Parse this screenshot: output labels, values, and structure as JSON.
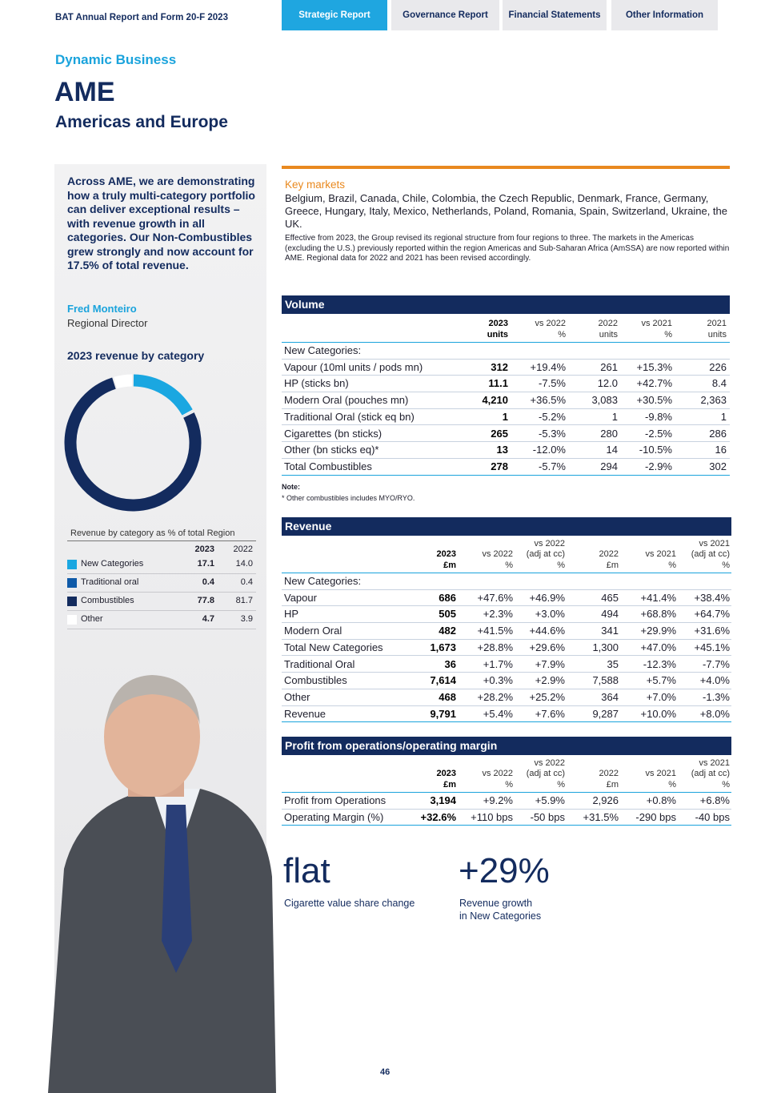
{
  "header": {
    "title": "BAT Annual Report and Form 20-F 2023",
    "tabs": [
      "Strategic Report",
      "Governance Report",
      "Financial Statements",
      "Other Information"
    ]
  },
  "section": "Dynamic Business",
  "title": "AME",
  "subtitle": "Americas and Europe",
  "quote": "Across AME, we are demonstrating how a truly multi-category portfolio can deliver exceptional results – with revenue growth in all categories. Our Non-Combustibles grew strongly and now account for 17.5% of total revenue.",
  "person": {
    "name": "Fred  Monteiro",
    "role": "Regional Director"
  },
  "revenue_chart": {
    "title": "2023 revenue by category",
    "table_title": "Revenue by category as % of total Region",
    "columns": [
      "2023",
      "2022"
    ],
    "rows": [
      {
        "label": "New Categories",
        "color": "#1aa7e1",
        "values": [
          "17.1",
          "14.0"
        ]
      },
      {
        "label": "Traditional oral",
        "color": "#0f5aa8",
        "values": [
          "0.4",
          "0.4"
        ]
      },
      {
        "label": "Combustibles",
        "color": "#132b5e",
        "values": [
          "77.8",
          "81.7"
        ]
      },
      {
        "label": "Other",
        "color": "#ffffff",
        "values": [
          "4.7",
          "3.9"
        ]
      }
    ]
  },
  "key_markets": {
    "title": "Key markets",
    "text": "Belgium, Brazil, Canada, Chile, Colombia, the Czech Republic, Denmark, France, Germany, Greece, Hungary, Italy, Mexico, Netherlands, Poland, Romania, Spain, Switzerland, Ukraine, the UK.",
    "note": "Effective from 2023, the Group revised its regional structure from four regions to three. The markets in the Americas (excluding the U.S.) previously reported within the region Americas and Sub-Saharan Africa (AmSSA) are now reported within AME. Regional data for 2022 and 2021 has been revised accordingly."
  },
  "tables": [
    {
      "title": "Volume",
      "columns": [
        [
          "2023",
          "units"
        ],
        [
          "vs 2022",
          "%"
        ],
        [
          "2022",
          "units"
        ],
        [
          "vs 2021",
          "%"
        ],
        [
          "2021",
          "units"
        ]
      ],
      "rows": [
        [
          "New Categories:"
        ],
        [
          "Vapour (10ml units / pods mn)",
          "312",
          "+19.4%",
          "261",
          "+15.3%",
          "226"
        ],
        [
          "HP (sticks bn)",
          "11.1",
          "-7.5%",
          "12.0",
          "+42.7%",
          "8.4"
        ],
        [
          "Modern Oral (pouches mn)",
          "4,210",
          "+36.5%",
          "3,083",
          "+30.5%",
          "2,363"
        ],
        [
          "Traditional Oral (stick eq bn)",
          "1",
          "-5.2%",
          "1",
          "-9.8%",
          "1"
        ],
        [
          "Cigarettes (bn sticks)",
          "265",
          "-5.3%",
          "280",
          "-2.5%",
          "286"
        ],
        [
          "Other (bn sticks eq)*",
          "13",
          "-12.0%",
          "14",
          "-10.5%",
          "16"
        ],
        [
          "Total Combustibles",
          "278",
          "-5.7%",
          "294",
          "-2.9%",
          "302"
        ]
      ],
      "note": [
        "Note:",
        "* Other combustibles includes MYO/RYO."
      ]
    },
    {
      "title": "Revenue",
      "columns": [
        [
          "2023",
          "£m"
        ],
        [
          "vs 2022",
          "%"
        ],
        [
          "vs 2022",
          "(adj at cc)",
          "%"
        ],
        [
          "2022",
          "£m"
        ],
        [
          "vs 2021",
          "%"
        ],
        [
          "vs 2021",
          "(adj at cc)",
          "%"
        ]
      ],
      "rows": [
        [
          "New Categories:"
        ],
        [
          "Vapour",
          "686",
          "+47.6%",
          "+46.9%",
          "465",
          "+41.4%",
          "+38.4%"
        ],
        [
          "HP",
          "505",
          "+2.3%",
          "+3.0%",
          "494",
          "+68.8%",
          "+64.7%"
        ],
        [
          "Modern Oral",
          "482",
          "+41.5%",
          "+44.6%",
          "341",
          "+29.9%",
          "+31.6%"
        ],
        [
          "Total New Categories",
          "1,673",
          "+28.8%",
          "+29.6%",
          "1,300",
          "+47.0%",
          "+45.1%"
        ],
        [
          "Traditional Oral",
          "36",
          "+1.7%",
          "+7.9%",
          "35",
          "-12.3%",
          "-7.7%"
        ],
        [
          "Combustibles",
          "7,614",
          "+0.3%",
          "+2.9%",
          "7,588",
          "+5.7%",
          "+4.0%"
        ],
        [
          "Other",
          "468",
          "+28.2%",
          "+25.2%",
          "364",
          "+7.0%",
          "-1.3%"
        ],
        [
          "Revenue",
          "9,791",
          "+5.4%",
          "+7.6%",
          "9,287",
          "+10.0%",
          "+8.0%"
        ]
      ]
    },
    {
      "title": "Profit from operations/operating margin",
      "columns": [
        [
          "2023",
          "£m"
        ],
        [
          "vs 2022",
          "%"
        ],
        [
          "vs 2022",
          "(adj at cc)",
          "%"
        ],
        [
          "2022",
          "£m"
        ],
        [
          "vs 2021",
          "%"
        ],
        [
          "vs 2021",
          "(adj at cc)",
          "%"
        ]
      ],
      "rows": [
        [
          "Profit from Operations",
          "3,194",
          "+9.2%",
          "+5.9%",
          "2,926",
          "+0.8%",
          "+6.8%"
        ],
        [
          "Operating Margin (%)",
          "+32.6%",
          "+110 bps",
          "-50 bps",
          "+31.5%",
          "-290 bps",
          "-40 bps"
        ]
      ]
    }
  ],
  "stats": [
    {
      "value": "flat",
      "label": [
        "Cigarette value share change"
      ]
    },
    {
      "value": "+29%",
      "label": [
        "Revenue growth",
        "in New Categories"
      ]
    }
  ],
  "page_number": "46"
}
